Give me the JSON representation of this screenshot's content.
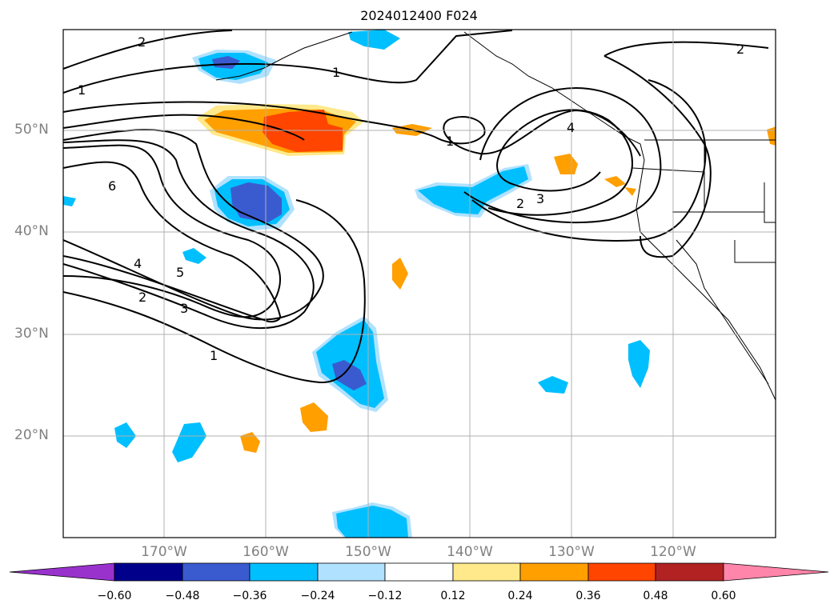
{
  "title": "2024012400 F024",
  "latitude_labels": [
    "50°N",
    "40°N",
    "30°N",
    "20°N"
  ],
  "longitude_labels": [
    "170°W",
    "160°W",
    "150°W",
    "140°W",
    "130°W",
    "120°W"
  ],
  "contour_labels": [
    "2",
    "1",
    "1",
    "4",
    "1",
    "2",
    "3",
    "2",
    "6",
    "4",
    "5",
    "2",
    "3",
    "1"
  ],
  "colorbar": {
    "tick_labels": [
      "−0.60",
      "−0.48",
      "−0.36",
      "−0.24",
      "−0.12",
      "0.12",
      "0.24",
      "0.36",
      "0.48",
      "0.60"
    ],
    "colors": [
      "#9932cc",
      "#00008b",
      "#3a5bd0",
      "#00bfff",
      "#b0e2ff",
      "#ffffff",
      "#ffe98a",
      "#ff9f00",
      "#ff4500",
      "#b22222",
      "#ff85aa"
    ]
  }
}
